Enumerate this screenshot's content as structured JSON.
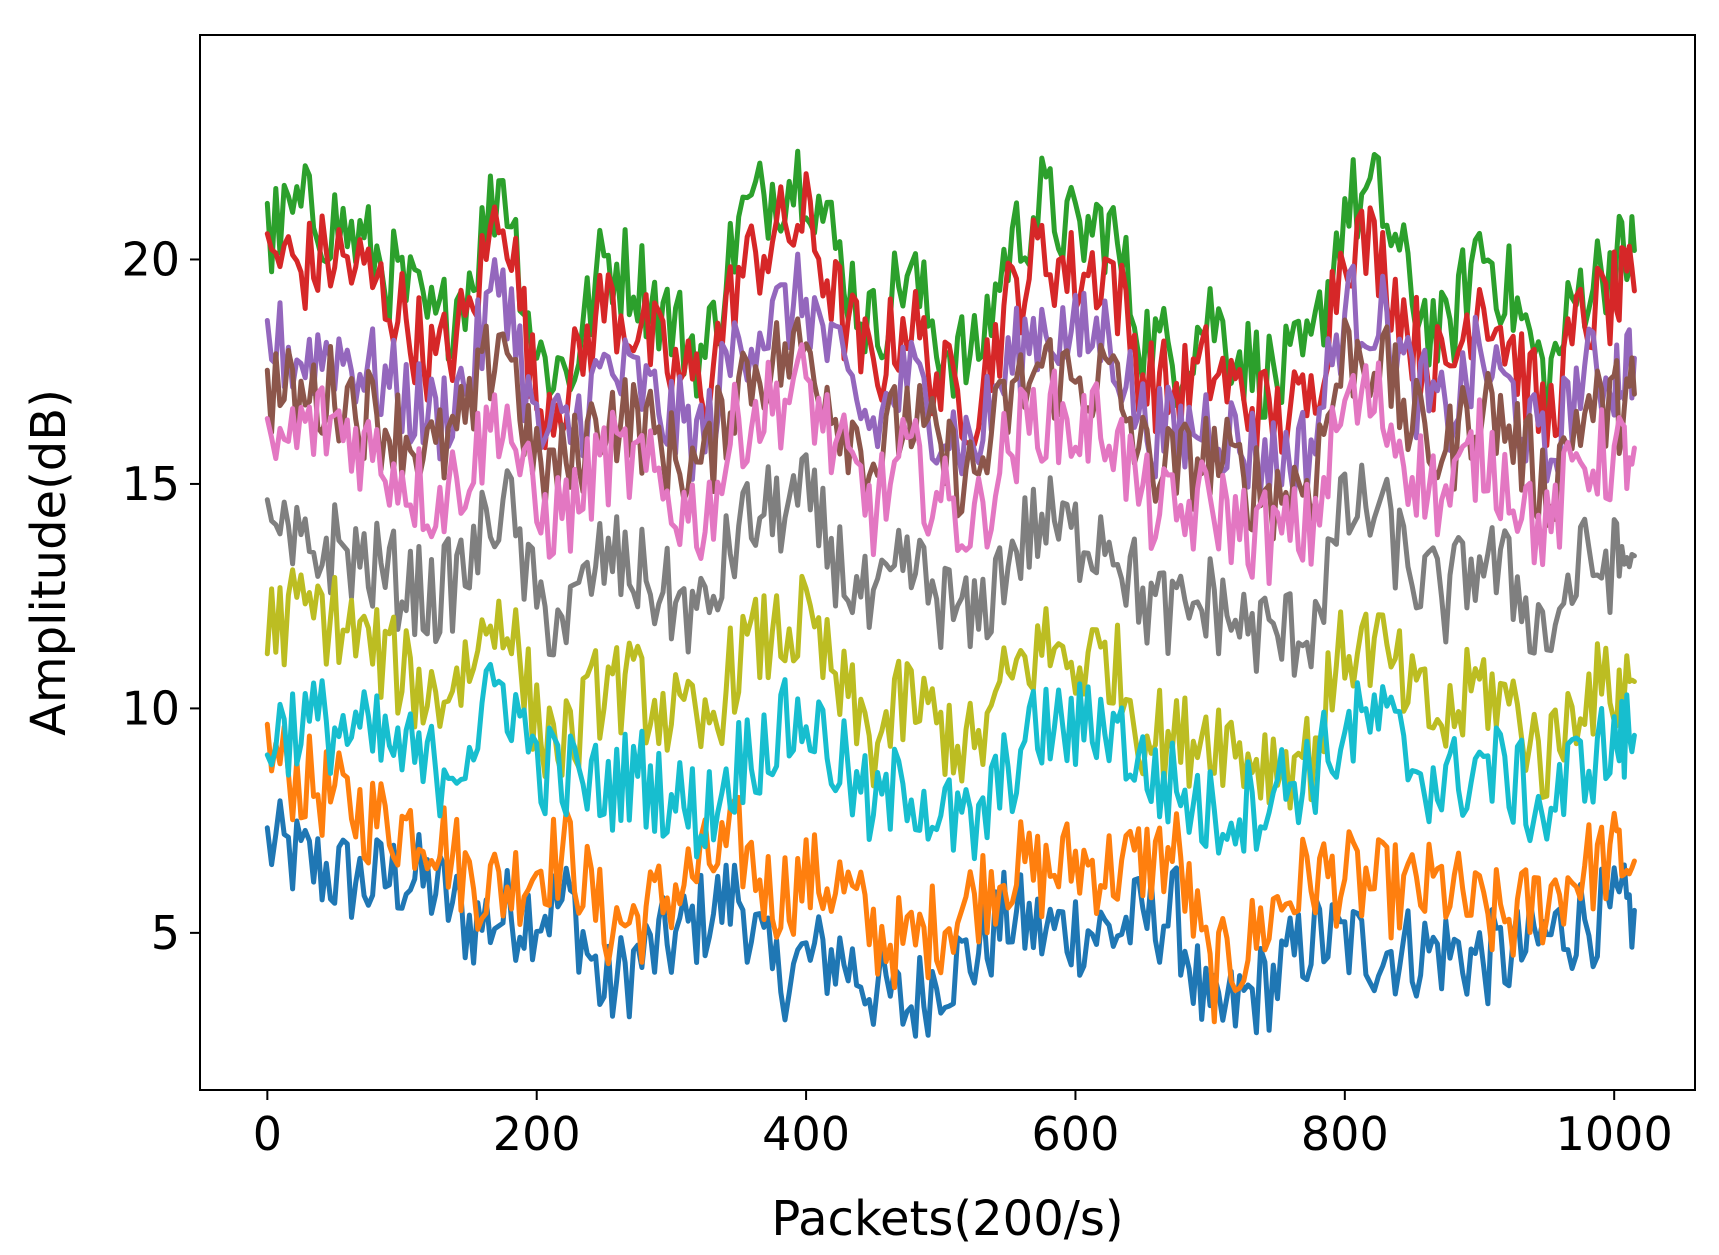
{
  "chart_data": {
    "type": "line",
    "title": "",
    "xlabel": "Packets(200/s)",
    "ylabel": "Amplitude(dB)",
    "xlim": [
      -50,
      1060
    ],
    "ylim": [
      1.5,
      25
    ],
    "xticks": [
      0,
      200,
      400,
      600,
      800,
      1000
    ],
    "yticks": [
      5,
      10,
      15,
      20
    ],
    "xtick_labels": [
      "0",
      "200",
      "400",
      "600",
      "800",
      "1000"
    ],
    "ytick_labels": [
      "5",
      "10",
      "15",
      "20"
    ],
    "grid": false,
    "legend": "none",
    "x": [
      0,
      25,
      50,
      75,
      100,
      125,
      150,
      175,
      200,
      225,
      250,
      275,
      300,
      325,
      350,
      375,
      400,
      425,
      450,
      475,
      500,
      525,
      550,
      575,
      600,
      625,
      650,
      675,
      700,
      725,
      750,
      775,
      800,
      825,
      850,
      875,
      900,
      925,
      950,
      975,
      1000,
      1015
    ],
    "series": [
      {
        "color": "#1f77b4",
        "values": [
          7.0,
          6.6,
          6.3,
          6.1,
          6.3,
          6.0,
          5.2,
          5.4,
          5.5,
          5.7,
          3.6,
          4.4,
          4.8,
          5.4,
          5.9,
          4.0,
          4.4,
          4.5,
          3.8,
          3.3,
          4.1,
          4.5,
          5.4,
          5.0,
          5.1,
          5.0,
          5.3,
          5.4,
          2.9,
          3.5,
          4.0,
          4.9,
          4.8,
          4.6,
          4.6,
          4.6,
          4.4,
          4.5,
          4.9,
          5.3,
          5.4,
          5.5
        ]
      },
      {
        "color": "#ff7f0e",
        "values": [
          9.0,
          8.4,
          8.0,
          7.6,
          7.4,
          7.3,
          6.2,
          6.0,
          6.5,
          6.8,
          5.2,
          5.3,
          5.9,
          6.5,
          7.0,
          5.8,
          6.2,
          6.1,
          5.0,
          4.7,
          5.2,
          5.8,
          6.5,
          6.3,
          6.6,
          6.4,
          6.6,
          6.8,
          4.0,
          4.6,
          5.6,
          6.3,
          6.2,
          6.0,
          5.9,
          6.0,
          5.4,
          5.3,
          5.8,
          6.4,
          6.7,
          6.6
        ]
      },
      {
        "color": "#2ca02c",
        "values": [
          20.5,
          21.1,
          20.8,
          20.2,
          19.4,
          18.4,
          19.6,
          22.0,
          17.8,
          17.5,
          20.0,
          19.6,
          18.6,
          17.8,
          20.8,
          21.6,
          22.0,
          20.0,
          18.4,
          19.8,
          18.1,
          17.7,
          20.2,
          21.3,
          20.5,
          20.8,
          18.3,
          17.8,
          18.8,
          17.8,
          17.3,
          17.8,
          21.2,
          21.4,
          19.2,
          18.1,
          20.4,
          19.1,
          17.2,
          19.4,
          20.0,
          20.2
        ]
      },
      {
        "color": "#d62728",
        "values": [
          20.2,
          19.8,
          20.1,
          19.6,
          18.8,
          17.6,
          18.7,
          21.5,
          16.8,
          17.2,
          19.1,
          18.5,
          17.5,
          17.2,
          19.6,
          20.5,
          20.9,
          18.9,
          17.4,
          18.8,
          17.2,
          16.8,
          19.0,
          20.2,
          19.6,
          19.9,
          17.4,
          17.0,
          17.6,
          16.9,
          16.4,
          16.8,
          20.5,
          20.2,
          18.3,
          17.3,
          19.4,
          18.0,
          16.3,
          18.6,
          19.1,
          19.3
        ]
      },
      {
        "color": "#9467bd",
        "values": [
          18.2,
          17.8,
          18.0,
          17.5,
          17.0,
          16.4,
          17.4,
          19.8,
          16.0,
          16.2,
          17.5,
          17.2,
          16.4,
          16.0,
          18.3,
          18.6,
          19.2,
          17.4,
          16.2,
          17.4,
          16.4,
          15.8,
          17.6,
          18.6,
          18.2,
          18.4,
          16.4,
          16.0,
          16.5,
          15.8,
          15.5,
          15.8,
          18.9,
          18.8,
          17.2,
          16.4,
          17.8,
          16.9,
          15.4,
          17.4,
          17.5,
          17.8
        ]
      },
      {
        "color": "#8c564b",
        "values": [
          17.2,
          16.8,
          17.1,
          16.6,
          16.1,
          15.6,
          16.4,
          18.6,
          15.2,
          15.4,
          16.6,
          16.4,
          15.6,
          15.3,
          17.4,
          17.7,
          18.0,
          16.6,
          15.5,
          16.6,
          15.6,
          15.1,
          16.8,
          17.6,
          17.2,
          17.4,
          15.6,
          15.3,
          15.7,
          15.1,
          14.8,
          15.1,
          17.9,
          17.8,
          16.3,
          15.6,
          16.9,
          16.1,
          14.8,
          16.6,
          16.7,
          17.0
        ]
      },
      {
        "color": "#e377c2",
        "values": [
          15.6,
          16.2,
          16.4,
          15.8,
          15.2,
          14.6,
          15.4,
          16.8,
          14.2,
          14.4,
          15.6,
          15.4,
          14.6,
          14.2,
          16.4,
          16.8,
          17.2,
          15.6,
          14.4,
          15.6,
          14.6,
          14.0,
          15.8,
          16.6,
          16.2,
          16.4,
          14.6,
          14.2,
          14.6,
          14.0,
          13.8,
          14.0,
          16.8,
          16.8,
          15.4,
          14.6,
          15.8,
          15.0,
          13.8,
          15.6,
          15.6,
          15.8
        ]
      },
      {
        "color": "#7f7f7f",
        "values": [
          13.8,
          13.4,
          13.6,
          13.2,
          12.8,
          12.4,
          13.2,
          14.8,
          12.2,
          12.0,
          13.4,
          13.0,
          12.4,
          12.0,
          14.0,
          14.4,
          14.6,
          13.2,
          12.0,
          13.2,
          12.4,
          11.8,
          13.4,
          14.2,
          13.8,
          14.0,
          12.4,
          12.0,
          12.4,
          11.8,
          11.6,
          11.8,
          14.4,
          14.4,
          13.0,
          12.4,
          13.4,
          12.8,
          11.6,
          13.2,
          13.2,
          13.4
        ]
      },
      {
        "color": "#bcbd22",
        "values": [
          11.8,
          12.2,
          12.0,
          11.4,
          10.8,
          10.2,
          11.0,
          12.4,
          9.6,
          9.2,
          10.6,
          10.4,
          9.8,
          9.4,
          11.2,
          11.6,
          11.9,
          10.4,
          9.2,
          10.2,
          9.6,
          9.0,
          10.6,
          11.4,
          11.0,
          11.2,
          9.6,
          9.2,
          9.6,
          9.0,
          8.8,
          9.0,
          11.4,
          11.4,
          10.2,
          9.6,
          10.6,
          10.0,
          8.8,
          10.4,
          10.4,
          10.6
        ]
      },
      {
        "color": "#17becf",
        "values": [
          9.4,
          9.7,
          9.6,
          9.3,
          9.0,
          8.6,
          9.2,
          10.6,
          8.8,
          8.4,
          8.2,
          8.6,
          8.0,
          7.6,
          8.8,
          9.4,
          9.8,
          8.8,
          7.6,
          8.4,
          7.6,
          7.2,
          8.6,
          9.6,
          9.5,
          9.8,
          8.6,
          8.2,
          7.6,
          7.8,
          8.2,
          8.6,
          9.4,
          9.8,
          8.8,
          8.2,
          8.8,
          8.4,
          7.6,
          8.8,
          9.2,
          9.4
        ]
      }
    ]
  }
}
